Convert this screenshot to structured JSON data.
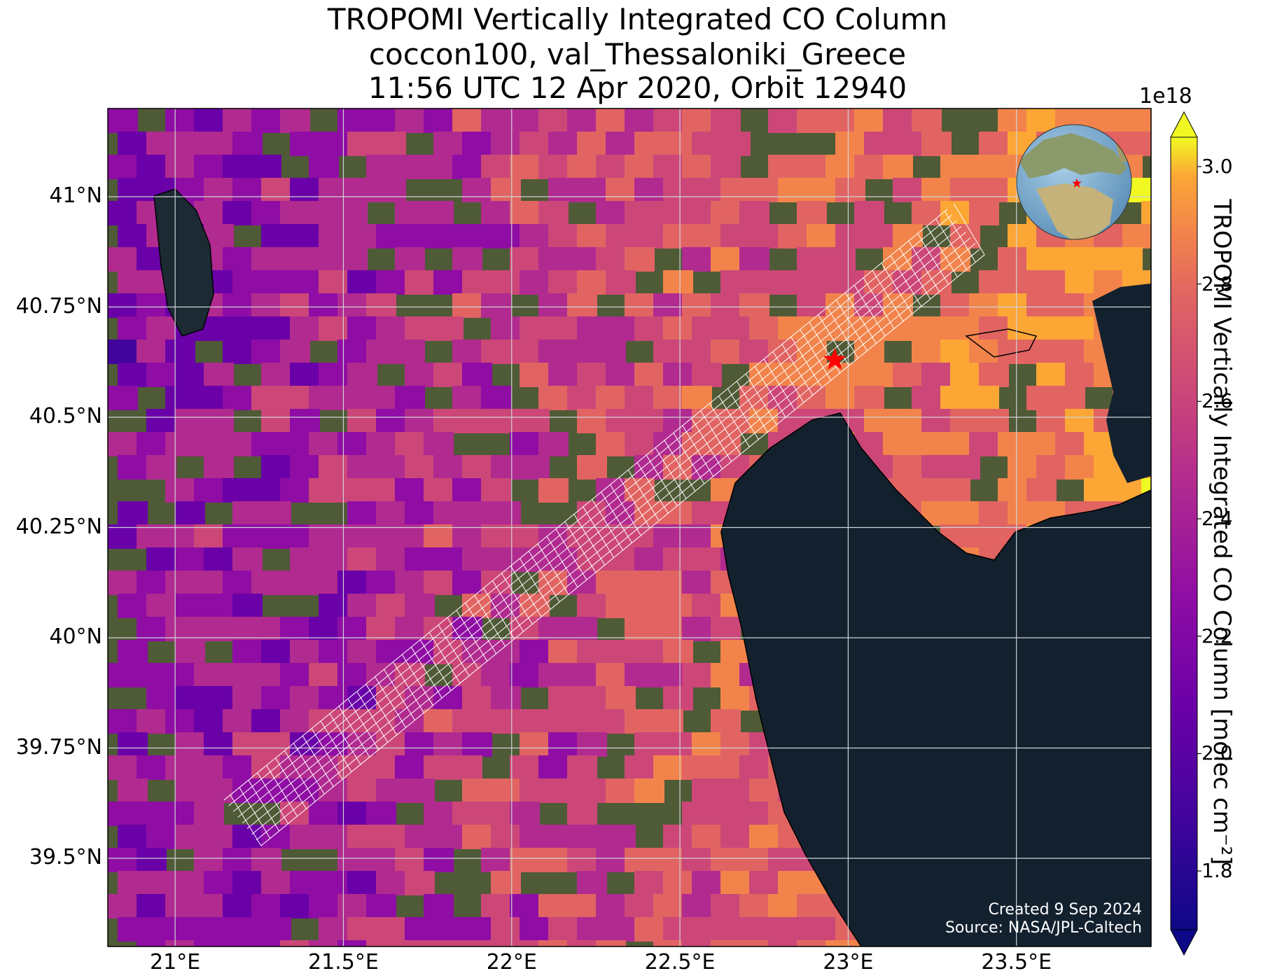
{
  "title": {
    "line1": "TROPOMI Vertically Integrated CO Column",
    "line2": "coccon100, val_Thessaloniki_Greece",
    "line3": "11:56 UTC 12 Apr 2020, Orbit 12940"
  },
  "map": {
    "lat_labels": [
      "41°N",
      "40.75°N",
      "40.5°N",
      "40.25°N",
      "40°N",
      "39.75°N",
      "39.5°N"
    ],
    "lon_labels": [
      "21°E",
      "21.5°E",
      "22°E",
      "22.5°E",
      "23°E",
      "23.5°E"
    ],
    "extent": {
      "lon_min": 20.8,
      "lon_max": 23.9,
      "lat_min": 39.3,
      "lat_max": 41.2
    },
    "site": {
      "name": "val_Thessaloniki_Greece",
      "lon": 22.96,
      "lat": 40.63,
      "marker": "red-star",
      "color": "#ff0000"
    },
    "inset_globe": {
      "marker": "red-star"
    }
  },
  "colorbar": {
    "label": "TROPOMI Vertically Integrated CO Column [molec cm⁻²]",
    "exponent": "1e18",
    "range": [
      1.7,
      3.05
    ],
    "ticks": [
      "1.8",
      "2.0",
      "2.2",
      "2.4",
      "2.6",
      "2.8",
      "3.0"
    ],
    "tick_values": [
      1.8,
      2.0,
      2.2,
      2.4,
      2.6,
      2.8,
      3.0
    ],
    "colormap": "plasma",
    "extend": "both"
  },
  "credits": {
    "created": "Created 9 Sep 2024",
    "source": "Source: NASA/JPL-Caltech"
  },
  "colors": {
    "land": "#4f5a36",
    "sea": "#13212f",
    "coastline": "#000000",
    "grid": "#cfd4d6",
    "footprint": "#ffffff"
  }
}
